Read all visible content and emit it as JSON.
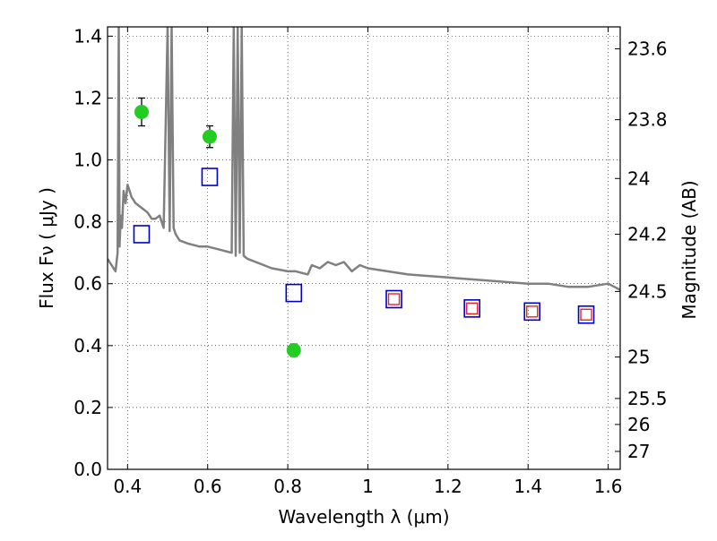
{
  "chart_data": {
    "type": "scatter",
    "title": "",
    "xlabel": "Wavelength  λ (μm)",
    "ylabel": "Flux  Fν  ( μJy )",
    "y2label": "Magnitude (AB)",
    "xlim": [
      0.35,
      1.63
    ],
    "ylim": [
      0.0,
      1.43
    ],
    "grid": true,
    "grid_style": "dotted",
    "legend": "none",
    "xticks": [
      {
        "value": 0.4,
        "label": "0.4"
      },
      {
        "value": 0.6,
        "label": "0.6"
      },
      {
        "value": 0.8,
        "label": "0.8"
      },
      {
        "value": 1.0,
        "label": "1"
      },
      {
        "value": 1.2,
        "label": "1.2"
      },
      {
        "value": 1.4,
        "label": "1.4"
      },
      {
        "value": 1.6,
        "label": "1.6"
      }
    ],
    "yticks": [
      {
        "value": 0.0,
        "label": "0.0"
      },
      {
        "value": 0.2,
        "label": "0.2"
      },
      {
        "value": 0.4,
        "label": "0.4"
      },
      {
        "value": 0.6,
        "label": "0.6"
      },
      {
        "value": 0.8,
        "label": "0.8"
      },
      {
        "value": 1.0,
        "label": "1.0"
      },
      {
        "value": 1.2,
        "label": "1.2"
      },
      {
        "value": 1.4,
        "label": "1.4"
      }
    ],
    "y2ticks": [
      {
        "flux": 1.359,
        "label": "23.6"
      },
      {
        "flux": 1.13,
        "label": "23.8"
      },
      {
        "flux": 0.94,
        "label": "24"
      },
      {
        "flux": 0.76,
        "label": "24.2"
      },
      {
        "flux": 0.575,
        "label": "24.5"
      },
      {
        "flux": 0.363,
        "label": "25"
      },
      {
        "flux": 0.229,
        "label": "25.5"
      },
      {
        "flux": 0.145,
        "label": "26"
      },
      {
        "flux": 0.058,
        "label": "27"
      }
    ],
    "colors": {
      "template": "#808080",
      "observed": "#22cc22",
      "model_box": "#0000cc",
      "model_inner": "#ee2222",
      "errorbar": "#000000"
    },
    "series": [
      {
        "kind": "line",
        "x": [
          0.35,
          0.36,
          0.37,
          0.375,
          0.378,
          0.38,
          0.383,
          0.386,
          0.39,
          0.395,
          0.4,
          0.405,
          0.41,
          0.42,
          0.43,
          0.44,
          0.45,
          0.46,
          0.47,
          0.48,
          0.49,
          0.5,
          0.505,
          0.51,
          0.515,
          0.52,
          0.53,
          0.55,
          0.58,
          0.6,
          0.63,
          0.66,
          0.665,
          0.67,
          0.675,
          0.68,
          0.685,
          0.69,
          0.7,
          0.72,
          0.76,
          0.8,
          0.82,
          0.85,
          0.86,
          0.88,
          0.9,
          0.92,
          0.94,
          0.96,
          0.98,
          1.0,
          1.1,
          1.2,
          1.3,
          1.4,
          1.45,
          1.5,
          1.55,
          1.6,
          1.63
        ],
        "y": [
          0.68,
          0.66,
          0.64,
          0.7,
          1.43,
          0.72,
          0.82,
          0.78,
          0.9,
          0.86,
          0.92,
          0.9,
          0.88,
          0.86,
          0.85,
          0.84,
          0.83,
          0.81,
          0.81,
          0.82,
          0.78,
          1.43,
          0.77,
          1.43,
          0.78,
          0.76,
          0.74,
          0.73,
          0.72,
          0.72,
          0.71,
          0.7,
          1.43,
          0.69,
          1.43,
          0.7,
          1.43,
          0.69,
          0.68,
          0.67,
          0.65,
          0.64,
          0.64,
          0.63,
          0.66,
          0.65,
          0.67,
          0.66,
          0.67,
          0.64,
          0.66,
          0.65,
          0.63,
          0.62,
          0.61,
          0.6,
          0.6,
          0.59,
          0.59,
          0.6,
          0.58
        ]
      },
      {
        "kind": "points",
        "x": [
          0.435,
          0.605,
          0.815
        ],
        "y": [
          1.155,
          1.075,
          0.385
        ],
        "yerr": [
          0.045,
          0.035,
          0.02
        ]
      },
      {
        "kind": "boxes",
        "x": [
          0.435,
          0.605,
          0.815,
          1.065,
          1.26,
          1.41,
          1.545
        ],
        "y": [
          0.76,
          0.945,
          0.57,
          0.55,
          0.52,
          0.51,
          0.5
        ],
        "inner": [
          false,
          false,
          false,
          true,
          true,
          true,
          true
        ]
      }
    ]
  }
}
